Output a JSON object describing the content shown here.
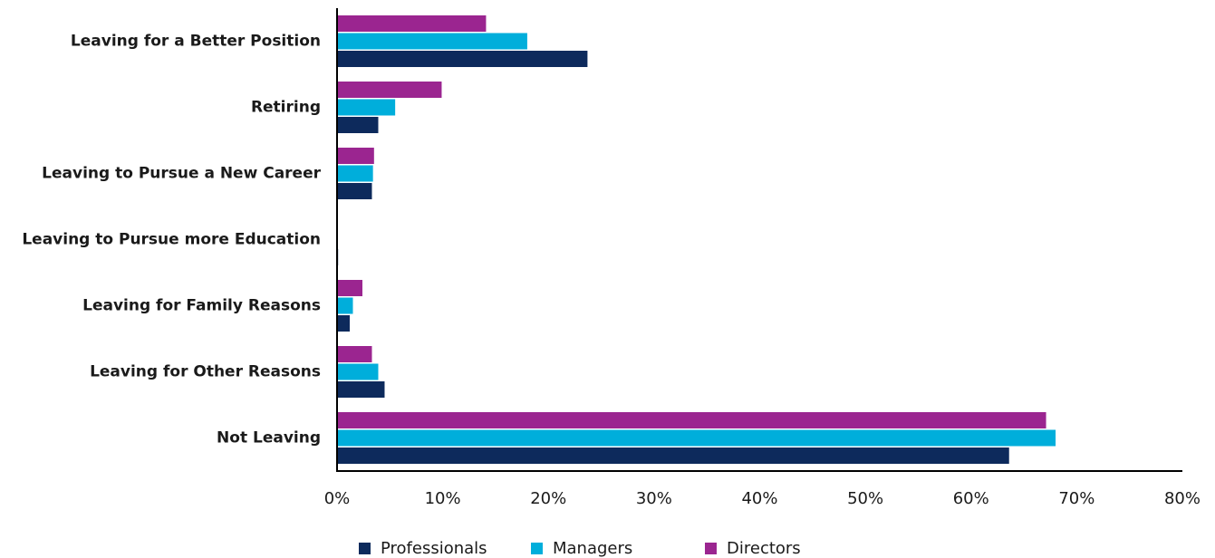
{
  "chart_data": {
    "type": "bar",
    "orientation": "horizontal",
    "categories": [
      "Leaving for a Better Position",
      "Retiring",
      "Leaving to Pursue a New Career",
      "Leaving to Pursue more Education",
      "Leaving for Family Reasons",
      "Leaving for Other Reasons",
      "Not Leaving"
    ],
    "series": [
      {
        "name": "Professionals",
        "color": "#0d2a5c",
        "values": [
          23.7,
          3.9,
          3.3,
          0.1,
          1.2,
          4.5,
          63.6
        ]
      },
      {
        "name": "Managers",
        "color": "#00aedb",
        "values": [
          18.0,
          5.5,
          3.4,
          0,
          1.5,
          3.9,
          68.0
        ]
      },
      {
        "name": "Directors",
        "color": "#9b2590",
        "values": [
          14.1,
          9.9,
          3.5,
          0,
          2.4,
          3.3,
          67.1
        ]
      }
    ],
    "xlim": [
      0,
      80
    ],
    "xticks": [
      {
        "value": 0,
        "label": "0%"
      },
      {
        "value": 10,
        "label": "10%"
      },
      {
        "value": 20,
        "label": "20%"
      },
      {
        "value": 30,
        "label": "30%"
      },
      {
        "value": 40,
        "label": "40%"
      },
      {
        "value": 50,
        "label": "50%"
      },
      {
        "value": 60,
        "label": "60%"
      },
      {
        "value": 70,
        "label": "70%"
      },
      {
        "value": 80,
        "label": "80%"
      }
    ],
    "grid": false,
    "legend": "bottom"
  }
}
